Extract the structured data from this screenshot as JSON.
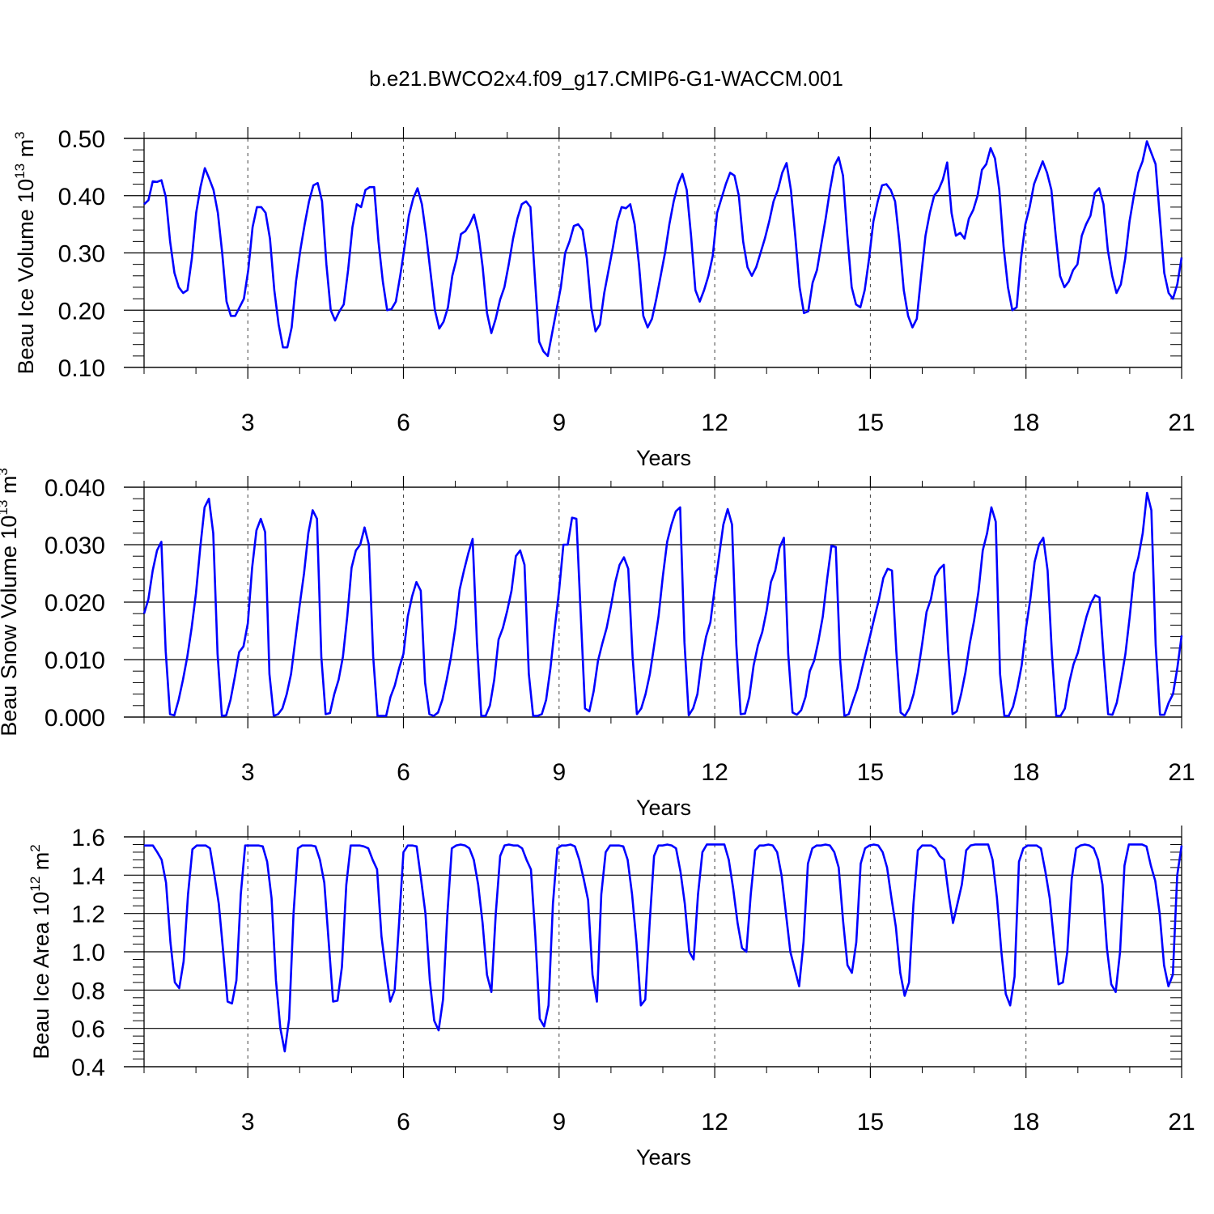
{
  "title": "b.e21.BWCO2x4.f09_g17.CMIP6-G1-WACCM.001",
  "colors": {
    "line": "#0000ff",
    "axis": "#000000",
    "grid": "#444444"
  },
  "chart_data": [
    {
      "type": "line",
      "ylabel": {
        "main": "Beau Ice Volume 10",
        "sup1": "13",
        "mid": " m",
        "sup2": "3"
      },
      "xlabel": "Years",
      "ylim": [
        0.1,
        0.5
      ],
      "xlim": [
        1.0,
        21.0
      ],
      "yticks": [
        "0.10",
        "0.20",
        "0.30",
        "0.40",
        "0.50"
      ],
      "xticks": [
        "3",
        "6",
        "9",
        "12",
        "15",
        "18",
        "21"
      ],
      "grid": "dashed vertical at x ticks",
      "series": [
        {
          "values": [
            0.385,
            0.392,
            0.425,
            0.424,
            0.427,
            0.398,
            0.32,
            0.265,
            0.24,
            0.23,
            0.235,
            0.29,
            0.37,
            0.415,
            0.448,
            0.43,
            0.41,
            0.37,
            0.3,
            0.215,
            0.19,
            0.19,
            0.205,
            0.22,
            0.27,
            0.345,
            0.38,
            0.38,
            0.37,
            0.325,
            0.235,
            0.175,
            0.135,
            0.135,
            0.17,
            0.25,
            0.305,
            0.35,
            0.39,
            0.418,
            0.422,
            0.39,
            0.28,
            0.2,
            0.182,
            0.198,
            0.21,
            0.27,
            0.345,
            0.385,
            0.38,
            0.41,
            0.415,
            0.415,
            0.32,
            0.25,
            0.2,
            0.202,
            0.215,
            0.26,
            0.31,
            0.365,
            0.395,
            0.413,
            0.385,
            0.33,
            0.265,
            0.2,
            0.168,
            0.18,
            0.205,
            0.26,
            0.29,
            0.333,
            0.338,
            0.35,
            0.367,
            0.335,
            0.275,
            0.195,
            0.16,
            0.185,
            0.218,
            0.24,
            0.28,
            0.325,
            0.36,
            0.385,
            0.39,
            0.38,
            0.26,
            0.145,
            0.128,
            0.12,
            0.16,
            0.2,
            0.24,
            0.3,
            0.32,
            0.347,
            0.35,
            0.34,
            0.29,
            0.205,
            0.163,
            0.175,
            0.23,
            0.27,
            0.31,
            0.355,
            0.38,
            0.378,
            0.385,
            0.35,
            0.28,
            0.19,
            0.17,
            0.185,
            0.22,
            0.26,
            0.3,
            0.35,
            0.39,
            0.42,
            0.438,
            0.41,
            0.33,
            0.235,
            0.215,
            0.235,
            0.26,
            0.295,
            0.37,
            0.395,
            0.42,
            0.44,
            0.435,
            0.4,
            0.32,
            0.275,
            0.26,
            0.275,
            0.3,
            0.325,
            0.355,
            0.39,
            0.41,
            0.44,
            0.457,
            0.41,
            0.33,
            0.24,
            0.195,
            0.198,
            0.248,
            0.27,
            0.315,
            0.36,
            0.41,
            0.452,
            0.467,
            0.435,
            0.33,
            0.24,
            0.21,
            0.205,
            0.235,
            0.29,
            0.355,
            0.39,
            0.418,
            0.42,
            0.41,
            0.39,
            0.32,
            0.235,
            0.19,
            0.17,
            0.185,
            0.26,
            0.33,
            0.37,
            0.4,
            0.41,
            0.428,
            0.458,
            0.37,
            0.33,
            0.335,
            0.325,
            0.36,
            0.375,
            0.4,
            0.445,
            0.455,
            0.483,
            0.465,
            0.41,
            0.31,
            0.24,
            0.2,
            0.205,
            0.29,
            0.35,
            0.38,
            0.42,
            0.44,
            0.46,
            0.44,
            0.41,
            0.33,
            0.26,
            0.24,
            0.25,
            0.27,
            0.28,
            0.33,
            0.35,
            0.365,
            0.405,
            0.413,
            0.385,
            0.305,
            0.26,
            0.23,
            0.245,
            0.29,
            0.355,
            0.4,
            0.44,
            0.46,
            0.495,
            0.475,
            0.455,
            0.36,
            0.265,
            0.23,
            0.22,
            0.245,
            0.292
          ]
        }
      ]
    },
    {
      "type": "line",
      "ylabel": {
        "main": "Beau Snow Volume 10",
        "sup1": "13",
        "mid": " m",
        "sup2": "3"
      },
      "xlabel": "Years",
      "ylim": [
        0.0,
        0.04
      ],
      "xlim": [
        1.0,
        21.0
      ],
      "yticks": [
        "0.000",
        "0.010",
        "0.020",
        "0.030",
        "0.040"
      ],
      "xticks": [
        "3",
        "6",
        "9",
        "12",
        "15",
        "18",
        "21"
      ],
      "grid": "dashed vertical at x ticks",
      "series": [
        {
          "values": [
            0.018,
            0.0205,
            0.0255,
            0.029,
            0.0305,
            0.0115,
            0.0005,
            0.0003,
            0.003,
            0.0065,
            0.0105,
            0.0155,
            0.0215,
            0.0295,
            0.0365,
            0.038,
            0.032,
            0.011,
            0.0002,
            0.0003,
            0.003,
            0.007,
            0.0113,
            0.0123,
            0.0163,
            0.026,
            0.0325,
            0.0345,
            0.0322,
            0.0075,
            0.0002,
            0.0005,
            0.0015,
            0.004,
            0.0075,
            0.0135,
            0.0195,
            0.025,
            0.032,
            0.036,
            0.0345,
            0.0105,
            0.0005,
            0.0007,
            0.004,
            0.0065,
            0.0105,
            0.0175,
            0.026,
            0.029,
            0.03,
            0.033,
            0.03,
            0.0105,
            0.0002,
            0.0002,
            0.0002,
            0.0035,
            0.0055,
            0.0085,
            0.011,
            0.0175,
            0.021,
            0.0235,
            0.022,
            0.006,
            0.0005,
            0.0002,
            0.0008,
            0.003,
            0.0065,
            0.0105,
            0.0155,
            0.0222,
            0.0255,
            0.0285,
            0.031,
            0.013,
            0.0002,
            0.0002,
            0.002,
            0.0065,
            0.0135,
            0.0155,
            0.0185,
            0.022,
            0.028,
            0.029,
            0.0265,
            0.0075,
            0.0002,
            0.0002,
            0.0005,
            0.003,
            0.0085,
            0.0155,
            0.022,
            0.03,
            0.03,
            0.0347,
            0.0345,
            0.018,
            0.0015,
            0.001,
            0.0045,
            0.0098,
            0.0128,
            0.0155,
            0.0193,
            0.0235,
            0.0265,
            0.0278,
            0.0258,
            0.0105,
            0.0005,
            0.0015,
            0.004,
            0.0075,
            0.0125,
            0.0175,
            0.0245,
            0.0305,
            0.0335,
            0.0358,
            0.0365,
            0.013,
            0.0003,
            0.0015,
            0.004,
            0.01,
            0.014,
            0.0165,
            0.0225,
            0.028,
            0.0335,
            0.0362,
            0.0335,
            0.0125,
            0.0005,
            0.0006,
            0.0035,
            0.009,
            0.0125,
            0.0148,
            0.0185,
            0.0235,
            0.0255,
            0.0295,
            0.0312,
            0.011,
            0.0008,
            0.0004,
            0.0012,
            0.0035,
            0.008,
            0.0098,
            0.0133,
            0.0175,
            0.024,
            0.0298,
            0.0296,
            0.01,
            0.0002,
            0.0005,
            0.0028,
            0.005,
            0.0082,
            0.0113,
            0.0143,
            0.0175,
            0.0205,
            0.0242,
            0.0258,
            0.0255,
            0.0115,
            0.0008,
            0.0002,
            0.0015,
            0.004,
            0.0078,
            0.0128,
            0.0183,
            0.0205,
            0.0245,
            0.0258,
            0.0265,
            0.0115,
            0.0005,
            0.001,
            0.004,
            0.0078,
            0.0128,
            0.0168,
            0.0218,
            0.029,
            0.032,
            0.0365,
            0.034,
            0.0075,
            0.0002,
            0.0002,
            0.0018,
            0.005,
            0.009,
            0.0155,
            0.0205,
            0.027,
            0.03,
            0.0312,
            0.0255,
            0.011,
            0.0002,
            0.0002,
            0.0015,
            0.006,
            0.0092,
            0.0112,
            0.0145,
            0.0175,
            0.0198,
            0.0212,
            0.0208,
            0.01,
            0.0005,
            0.0004,
            0.0025,
            0.0065,
            0.011,
            0.0175,
            0.025,
            0.0278,
            0.032,
            0.039,
            0.036,
            0.0125,
            0.0004,
            0.0004,
            0.0025,
            0.004,
            0.0085,
            0.0142
          ]
        }
      ]
    },
    {
      "type": "line",
      "ylabel": {
        "main": "Beau Ice Area 10",
        "sup1": "12",
        "mid": " m",
        "sup2": "2"
      },
      "xlabel": "Years",
      "ylim": [
        0.4,
        1.6
      ],
      "xlim": [
        1.0,
        21.0
      ],
      "yticks": [
        "0.4",
        "0.6",
        "0.8",
        "1.0",
        "1.2",
        "1.4",
        "1.6"
      ],
      "xticks": [
        "3",
        "6",
        "9",
        "12",
        "15",
        "18",
        "21"
      ],
      "grid": "dashed vertical at x ticks",
      "series": [
        {
          "values": [
            1.555,
            1.555,
            1.555,
            1.52,
            1.48,
            1.36,
            1.05,
            0.84,
            0.81,
            0.95,
            1.3,
            1.535,
            1.555,
            1.555,
            1.555,
            1.54,
            1.4,
            1.25,
            1.0,
            0.74,
            0.73,
            0.85,
            1.3,
            1.555,
            1.555,
            1.555,
            1.555,
            1.55,
            1.47,
            1.28,
            0.85,
            0.6,
            0.48,
            0.65,
            1.2,
            1.54,
            1.555,
            1.555,
            1.555,
            1.55,
            1.48,
            1.36,
            1.05,
            0.74,
            0.745,
            0.92,
            1.35,
            1.555,
            1.555,
            1.555,
            1.55,
            1.54,
            1.48,
            1.43,
            1.08,
            0.9,
            0.74,
            0.8,
            1.15,
            1.52,
            1.555,
            1.555,
            1.55,
            1.38,
            1.2,
            0.85,
            0.64,
            0.59,
            0.75,
            1.2,
            1.54,
            1.555,
            1.56,
            1.555,
            1.54,
            1.48,
            1.35,
            1.15,
            0.88,
            0.79,
            1.2,
            1.5,
            1.555,
            1.56,
            1.555,
            1.555,
            1.54,
            1.48,
            1.43,
            1.08,
            0.65,
            0.61,
            0.72,
            1.25,
            1.54,
            1.555,
            1.555,
            1.56,
            1.55,
            1.48,
            1.38,
            1.27,
            0.88,
            0.74,
            1.3,
            1.52,
            1.555,
            1.555,
            1.555,
            1.55,
            1.48,
            1.3,
            1.05,
            0.72,
            0.75,
            1.15,
            1.5,
            1.555,
            1.555,
            1.56,
            1.555,
            1.54,
            1.42,
            1.25,
            1.0,
            0.96,
            1.3,
            1.52,
            1.56,
            1.56,
            1.56,
            1.56,
            1.56,
            1.48,
            1.33,
            1.15,
            1.02,
            1.0,
            1.3,
            1.53,
            1.555,
            1.555,
            1.56,
            1.555,
            1.52,
            1.4,
            1.2,
            1.0,
            0.91,
            0.82,
            1.05,
            1.46,
            1.54,
            1.555,
            1.555,
            1.56,
            1.555,
            1.52,
            1.44,
            1.16,
            0.93,
            0.89,
            1.05,
            1.46,
            1.54,
            1.555,
            1.56,
            1.555,
            1.52,
            1.44,
            1.28,
            1.13,
            0.89,
            0.77,
            0.84,
            1.25,
            1.53,
            1.555,
            1.555,
            1.555,
            1.54,
            1.5,
            1.48,
            1.3,
            1.15,
            1.25,
            1.35,
            1.53,
            1.555,
            1.56,
            1.56,
            1.56,
            1.56,
            1.48,
            1.28,
            1.0,
            0.78,
            0.72,
            0.87,
            1.47,
            1.54,
            1.555,
            1.555,
            1.555,
            1.54,
            1.42,
            1.28,
            1.05,
            0.83,
            0.84,
            1.0,
            1.38,
            1.54,
            1.555,
            1.56,
            1.555,
            1.54,
            1.48,
            1.35,
            1.02,
            0.83,
            0.79,
            1.0,
            1.45,
            1.56,
            1.56,
            1.56,
            1.56,
            1.55,
            1.45,
            1.37,
            1.2,
            0.93,
            0.82,
            0.88,
            1.4,
            1.555
          ]
        }
      ]
    }
  ]
}
